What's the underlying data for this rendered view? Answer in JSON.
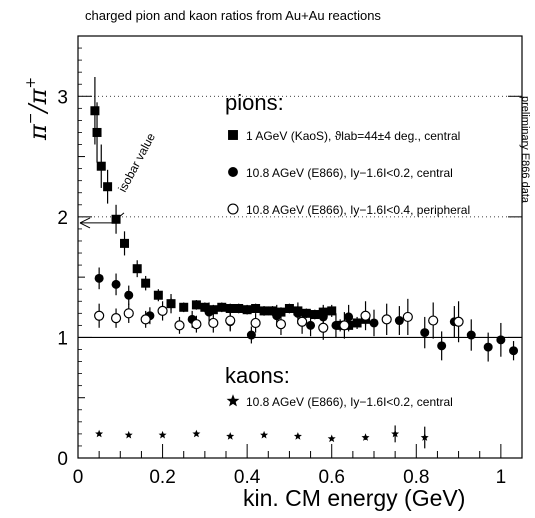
{
  "chart_data": {
    "type": "scatter",
    "title": "charged pion and kaon ratios from Au+Au reactions",
    "xlabel": "kin. CM energy (GeV)",
    "ylabel": "π⁻/π⁺",
    "xlim": [
      0,
      1.05
    ],
    "ylim": [
      0,
      3.5
    ],
    "x_ticks": [
      "0",
      "0.2",
      "0.4",
      "0.6",
      "0.8",
      "1"
    ],
    "y_ticks": [
      "0",
      "1",
      "2",
      "3"
    ],
    "grid": "dotted lines at y = 1, 2, 3",
    "reference_line": 1,
    "side_label": "preliminary E866 data",
    "annotation": {
      "text": "isobar value",
      "y": 1.95
    },
    "headings": {
      "pions": "pions:",
      "kaons": "kaons:"
    },
    "series": [
      {
        "name": "1 AGeV (KaoS), ϑlab=44±4 deg., central",
        "marker": "filled-square",
        "x": [
          0.04,
          0.045,
          0.055,
          0.07,
          0.09,
          0.11,
          0.14,
          0.16,
          0.19,
          0.22,
          0.25,
          0.28,
          0.3,
          0.32,
          0.34,
          0.36,
          0.38,
          0.4,
          0.42,
          0.44,
          0.46,
          0.48,
          0.5,
          0.52,
          0.54,
          0.56,
          0.58,
          0.6,
          0.62,
          0.64,
          0.66,
          0.68
        ],
        "y": [
          2.88,
          2.7,
          2.42,
          2.25,
          1.98,
          1.78,
          1.57,
          1.45,
          1.35,
          1.28,
          1.25,
          1.27,
          1.25,
          1.23,
          1.25,
          1.24,
          1.24,
          1.23,
          1.24,
          1.22,
          1.22,
          1.21,
          1.24,
          1.22,
          1.2,
          1.19,
          1.21,
          1.22,
          1.1,
          1.1,
          1.12,
          1.15
        ],
        "err": [
          0.28,
          0.25,
          0.18,
          0.14,
          0.12,
          0.1,
          0.07,
          0.06,
          0.05,
          0.05,
          0.04,
          0.04,
          0.04,
          0.04,
          0.04,
          0.04,
          0.04,
          0.04,
          0.04,
          0.04,
          0.04,
          0.04,
          0.04,
          0.04,
          0.04,
          0.04,
          0.04,
          0.05,
          0.05,
          0.05,
          0.05,
          0.05
        ]
      },
      {
        "name": "10.8 AGeV (E866), Iy−1.6I<0.2, central",
        "marker": "filled-circle",
        "x": [
          0.05,
          0.09,
          0.12,
          0.17,
          0.22,
          0.27,
          0.31,
          0.36,
          0.41,
          0.47,
          0.52,
          0.55,
          0.58,
          0.61,
          0.64,
          0.7,
          0.76,
          0.82,
          0.86,
          0.89,
          0.93,
          0.97,
          1.0,
          1.03
        ],
        "y": [
          1.49,
          1.44,
          1.35,
          1.18,
          1.28,
          1.15,
          1.21,
          1.13,
          1.02,
          1.18,
          1.2,
          1.1,
          1.17,
          1.1,
          1.17,
          1.12,
          1.14,
          1.04,
          0.93,
          1.13,
          1.02,
          0.92,
          0.98,
          0.89
        ],
        "err": [
          0.09,
          0.09,
          0.08,
          0.07,
          0.08,
          0.07,
          0.08,
          0.08,
          0.07,
          0.09,
          0.09,
          0.09,
          0.1,
          0.1,
          0.1,
          0.11,
          0.12,
          0.13,
          0.12,
          0.13,
          0.13,
          0.12,
          0.14,
          0.08
        ]
      },
      {
        "name": "10.8 AGeV (E866), Iy−1.6I<0.4, peripheral",
        "marker": "open-circle",
        "x": [
          0.05,
          0.09,
          0.12,
          0.16,
          0.2,
          0.24,
          0.28,
          0.32,
          0.36,
          0.42,
          0.48,
          0.53,
          0.58,
          0.63,
          0.68,
          0.73,
          0.78,
          0.84,
          0.9
        ],
        "y": [
          1.18,
          1.16,
          1.2,
          1.15,
          1.22,
          1.1,
          1.11,
          1.12,
          1.14,
          1.12,
          1.11,
          1.13,
          1.08,
          1.1,
          1.18,
          1.15,
          1.17,
          1.14,
          1.13
        ],
        "err": [
          0.1,
          0.08,
          0.08,
          0.07,
          0.08,
          0.07,
          0.07,
          0.08,
          0.08,
          0.08,
          0.09,
          0.1,
          0.1,
          0.11,
          0.12,
          0.13,
          0.15,
          0.15,
          0.17
        ]
      },
      {
        "name": "10.8 AGeV (E866), Iy−1.6I<0.2, central",
        "group": "kaons",
        "marker": "filled-star",
        "x": [
          0.05,
          0.12,
          0.2,
          0.28,
          0.36,
          0.44,
          0.52,
          0.6,
          0.68,
          0.75,
          0.82
        ],
        "y": [
          0.2,
          0.19,
          0.19,
          0.2,
          0.18,
          0.19,
          0.18,
          0.16,
          0.17,
          0.2,
          0.17
        ],
        "err": [
          0.01,
          0.01,
          0.01,
          0.01,
          0.01,
          0.01,
          0.01,
          0.01,
          0.02,
          0.07,
          0.09
        ]
      }
    ]
  }
}
